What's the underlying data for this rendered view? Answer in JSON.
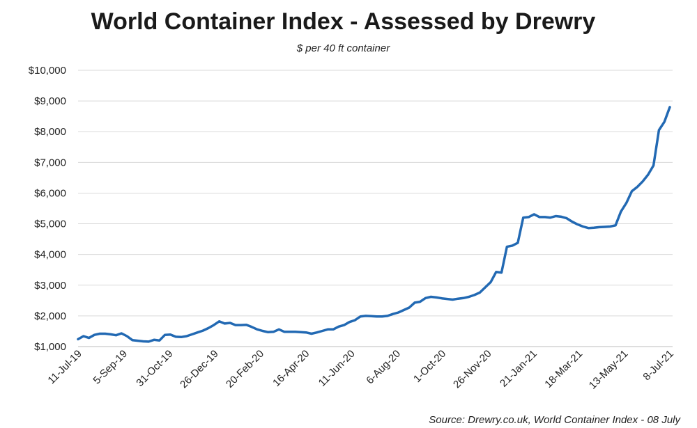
{
  "chart_data": {
    "type": "line",
    "title": "World Container Index - Assessed by Drewry",
    "subtitle": "$ per 40 ft container",
    "source": "Source: Drewry.co.uk, World Container Index - 08 July",
    "ylim": [
      1000,
      10000
    ],
    "y_ticks": [
      1000,
      2000,
      3000,
      4000,
      5000,
      6000,
      7000,
      8000,
      9000,
      10000
    ],
    "y_tick_labels": [
      "$1,000",
      "$2,000",
      "$3,000",
      "$4,000",
      "$5,000",
      "$6,000",
      "$7,000",
      "$8,000",
      "$9,000",
      "$10,000"
    ],
    "x_tick_labels": [
      "11-Jul-19",
      "5-Sep-19",
      "31-Oct-19",
      "26-Dec-19",
      "20-Feb-20",
      "16-Apr-20",
      "11-Jun-20",
      "6-Aug-20",
      "1-Oct-20",
      "26-Nov-20",
      "21-Jan-21",
      "18-Mar-21",
      "13-May-21",
      "8-Jul-21"
    ],
    "grid": true,
    "line_color": "#2269b3",
    "series": [
      {
        "values": [
          1240,
          1340,
          1280,
          1380,
          1420,
          1420,
          1400,
          1370,
          1430,
          1340,
          1210,
          1190,
          1170,
          1160,
          1220,
          1200,
          1380,
          1390,
          1320,
          1310,
          1340,
          1400,
          1460,
          1520,
          1600,
          1700,
          1820,
          1750,
          1770,
          1700,
          1700,
          1710,
          1640,
          1560,
          1510,
          1470,
          1480,
          1560,
          1480,
          1480,
          1480,
          1470,
          1460,
          1420,
          1460,
          1510,
          1560,
          1560,
          1650,
          1700,
          1800,
          1860,
          1980,
          2000,
          1990,
          1980,
          1980,
          2000,
          2060,
          2110,
          2190,
          2270,
          2430,
          2460,
          2580,
          2620,
          2600,
          2570,
          2550,
          2530,
          2560,
          2580,
          2620,
          2680,
          2760,
          2930,
          3100,
          3430,
          3410,
          4250,
          4290,
          4380,
          5200,
          5220,
          5310,
          5220,
          5220,
          5200,
          5250,
          5230,
          5180,
          5070,
          4980,
          4910,
          4860,
          4870,
          4890,
          4900,
          4910,
          4950,
          5400,
          5680,
          6060,
          6200,
          6380,
          6600,
          6900,
          8050,
          8320,
          8800
        ]
      }
    ]
  }
}
